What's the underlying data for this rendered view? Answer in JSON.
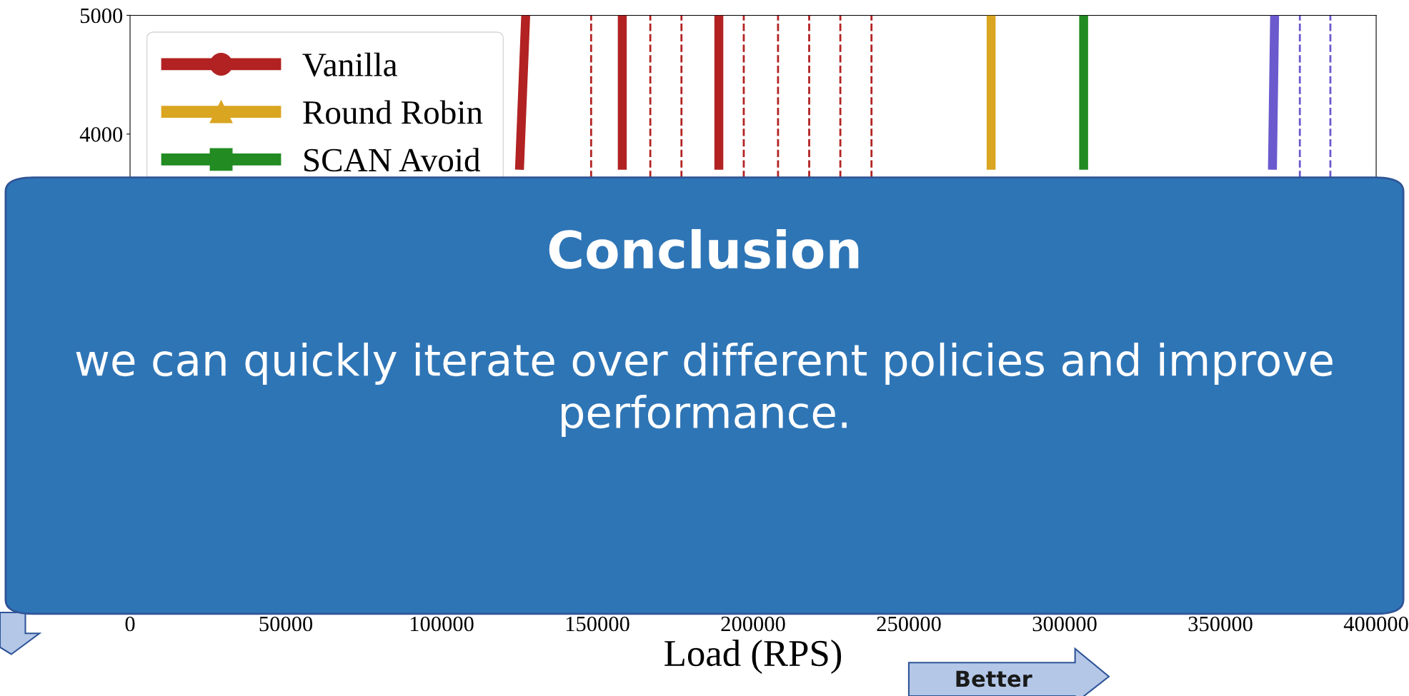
{
  "chart_data": {
    "type": "line",
    "xlabel": "Load (RPS)",
    "xlim": [
      0,
      400000
    ],
    "xticks": [
      0,
      50000,
      100000,
      150000,
      200000,
      250000,
      300000,
      350000,
      400000
    ],
    "ylim": [
      0,
      5000
    ],
    "yticks": [
      4000,
      5000
    ],
    "legend": "top left",
    "grid": false,
    "line_style": "solid",
    "series": [
      {
        "name": "Vanilla",
        "color": "#b22222",
        "x": [
          125000,
          127000,
          140000,
          158000,
          158000,
          175000,
          189000,
          189000
        ],
        "values": [
          3700,
          5000,
          null,
          3700,
          5000,
          null,
          3700,
          5000
        ]
      },
      {
        "name": "Round Robin",
        "color": "#daa520",
        "x": [
          276400,
          276400
        ],
        "values": [
          3700,
          5000
        ]
      },
      {
        "name": "SCAN Avoid",
        "color": "#228b22",
        "x": [
          306100,
          306100
        ],
        "values": [
          3700,
          5000
        ]
      },
      {
        "color": "#6a5acd",
        "x": [
          366700,
          367400
        ],
        "values": [
          3700,
          5000
        ]
      }
    ],
    "ref_lines": [
      {
        "axis": "x",
        "value": 148000,
        "color": "#b22222",
        "line_style": "dashed"
      },
      {
        "axis": "x",
        "value": 167000,
        "color": "#b22222",
        "line_style": "dashed"
      },
      {
        "axis": "x",
        "value": 177000,
        "color": "#b22222",
        "line_style": "dashed"
      },
      {
        "axis": "x",
        "value": 197000,
        "color": "#b22222",
        "line_style": "dashed"
      },
      {
        "axis": "x",
        "value": 208000,
        "color": "#b22222",
        "line_style": "dashed"
      },
      {
        "axis": "x",
        "value": 218000,
        "color": "#b22222",
        "line_style": "dashed"
      },
      {
        "axis": "x",
        "value": 228000,
        "color": "#b22222",
        "line_style": "dashed"
      },
      {
        "axis": "x",
        "value": 238000,
        "color": "#b22222",
        "line_style": "dashed"
      },
      {
        "axis": "x",
        "value": 375500,
        "color": "#6a5acd",
        "line_style": "dashed"
      },
      {
        "axis": "x",
        "value": 385300,
        "color": "#6a5acd",
        "line_style": "dashed"
      }
    ],
    "annotations": [
      "Conclusion",
      "we can quickly iterate over different policies and improve performance.",
      "Better"
    ]
  }
}
